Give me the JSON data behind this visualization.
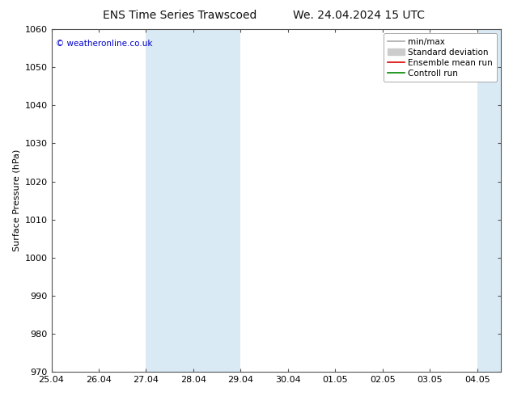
{
  "title_left": "ENS Time Series Trawscoed",
  "title_right": "We. 24.04.2024 15 UTC",
  "ylabel": "Surface Pressure (hPa)",
  "ylim": [
    970,
    1060
  ],
  "yticks": [
    970,
    980,
    990,
    1000,
    1010,
    1020,
    1030,
    1040,
    1050,
    1060
  ],
  "xtick_labels": [
    "25.04",
    "26.04",
    "27.04",
    "28.04",
    "29.04",
    "30.04",
    "01.05",
    "02.05",
    "03.05",
    "04.05"
  ],
  "shaded_bands": [
    {
      "xstart": 2.0,
      "xend": 4.0,
      "color": "#daeaf5"
    },
    {
      "xstart": 9.0,
      "xend": 9.5,
      "color": "#daeaf5"
    }
  ],
  "copyright_text": "© weatheronline.co.uk",
  "copyright_color": "#0000cc",
  "legend_items": [
    {
      "label": "min/max",
      "color": "#aaaaaa",
      "lw": 1.2,
      "type": "line"
    },
    {
      "label": "Standard deviation",
      "color": "#cccccc",
      "lw": 5,
      "type": "patch"
    },
    {
      "label": "Ensemble mean run",
      "color": "#dd0000",
      "lw": 1.2,
      "type": "line"
    },
    {
      "label": "Controll run",
      "color": "#008800",
      "lw": 1.2,
      "type": "line"
    }
  ],
  "bg_color": "#ffffff",
  "title_fontsize": 10,
  "axis_fontsize": 8,
  "legend_fontsize": 7.5
}
